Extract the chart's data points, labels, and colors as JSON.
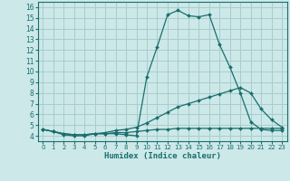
{
  "xlabel": "Humidex (Indice chaleur)",
  "bg_color": "#cce8e8",
  "grid_color": "#aacccc",
  "line_color": "#1a6e6e",
  "xlim": [
    -0.5,
    23.5
  ],
  "ylim": [
    3.5,
    16.5
  ],
  "xticks": [
    0,
    1,
    2,
    3,
    4,
    5,
    6,
    7,
    8,
    9,
    10,
    11,
    12,
    13,
    14,
    15,
    16,
    17,
    18,
    19,
    20,
    21,
    22,
    23
  ],
  "yticks": [
    4,
    5,
    6,
    7,
    8,
    9,
    10,
    11,
    12,
    13,
    14,
    15,
    16
  ],
  "line1_x": [
    0,
    1,
    2,
    3,
    4,
    5,
    6,
    7,
    8,
    9,
    10,
    11,
    12,
    13,
    14,
    15,
    16,
    17,
    18,
    19,
    20,
    21,
    22,
    23
  ],
  "line1_y": [
    4.6,
    4.4,
    4.1,
    4.0,
    4.0,
    4.2,
    4.2,
    4.2,
    4.1,
    4.0,
    9.5,
    12.3,
    15.3,
    15.7,
    15.2,
    15.1,
    15.3,
    12.5,
    10.4,
    8.0,
    5.3,
    4.6,
    4.5,
    4.5
  ],
  "line2_x": [
    0,
    1,
    2,
    3,
    4,
    5,
    6,
    7,
    8,
    9,
    10,
    11,
    12,
    13,
    14,
    15,
    16,
    17,
    18,
    19,
    20,
    21,
    22,
    23
  ],
  "line2_y": [
    4.6,
    4.4,
    4.2,
    4.1,
    4.1,
    4.2,
    4.3,
    4.5,
    4.6,
    4.8,
    5.2,
    5.7,
    6.2,
    6.7,
    7.0,
    7.3,
    7.6,
    7.9,
    8.2,
    8.5,
    8.0,
    6.5,
    5.5,
    4.8
  ],
  "line3_x": [
    0,
    1,
    2,
    3,
    4,
    5,
    6,
    7,
    8,
    9,
    10,
    11,
    12,
    13,
    14,
    15,
    16,
    17,
    18,
    19,
    20,
    21,
    22,
    23
  ],
  "line3_y": [
    4.6,
    4.4,
    4.2,
    4.1,
    4.1,
    4.2,
    4.2,
    4.3,
    4.3,
    4.4,
    4.5,
    4.6,
    4.6,
    4.7,
    4.7,
    4.7,
    4.7,
    4.7,
    4.7,
    4.7,
    4.7,
    4.7,
    4.7,
    4.7
  ]
}
